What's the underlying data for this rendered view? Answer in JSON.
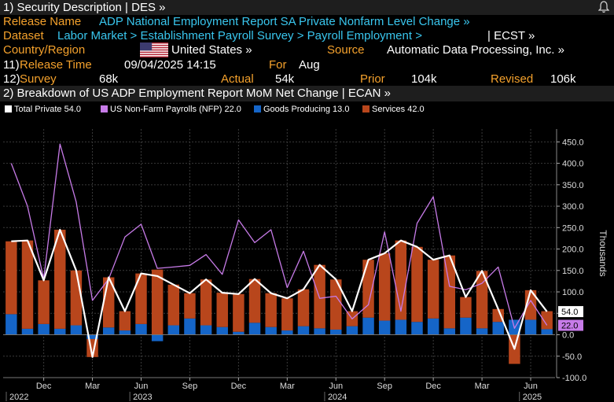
{
  "header": {
    "title": "1) Security Description  | DES  »"
  },
  "info": {
    "release_name_label": "Release Name",
    "release_name_value": "ADP National Employment Report SA Private Nonfarm Level Change »",
    "dataset_label": "Dataset",
    "dataset_value": "Labor Market > Establishment Payroll Survey > Payroll Employment >",
    "dataset_suffix": "| ECST »",
    "country_label": "Country/Region",
    "country_value": "United States »",
    "source_label": "Source",
    "source_value": "Automatic Data Processing, Inc. »",
    "release_time_num": "11)",
    "release_time_label": "Release Time",
    "release_time_value": "09/04/2025 14:15",
    "for_label": "For",
    "for_value": "Aug",
    "survey_num": "12)",
    "survey_label": "Survey",
    "survey_value": "68k",
    "actual_label": "Actual",
    "actual_value": "54k",
    "prior_label": "Prior",
    "prior_value": "104k",
    "revised_label": "Revised",
    "revised_value": "106k"
  },
  "section2": {
    "title": "2) Breakdown of US ADP Employment Report MoM Net Change | ECAN »"
  },
  "legend": [
    {
      "label": "Total Private 54.0",
      "color": "#ffffff"
    },
    {
      "label": "US Non-Farm Payrolls (NFP) 22.0",
      "color": "#c77be8"
    },
    {
      "label": "Goods Producing 13.0",
      "color": "#1565c8"
    },
    {
      "label": "Services 42.0",
      "color": "#b8461c"
    }
  ],
  "chart_data": {
    "type": "bar",
    "ylabel": "Thousands",
    "ylim": [
      -100,
      480
    ],
    "y_ticks": [
      -100,
      -50,
      0,
      50,
      100,
      150,
      200,
      250,
      300,
      350,
      400,
      450
    ],
    "y_tick_labels": [
      "-100.0",
      "-50.0",
      "0.0",
      "50.0",
      "100.0",
      "150.0",
      "200.0",
      "250.0",
      "300.0",
      "350.0",
      "400.0",
      "450.0"
    ],
    "x_tick_labels": [
      "Dec",
      "Mar",
      "Jun",
      "Sep",
      "Dec",
      "Mar",
      "Jun",
      "Sep",
      "Dec",
      "Mar",
      "Jun"
    ],
    "x_tick_index": [
      2,
      5,
      8,
      11,
      14,
      17,
      20,
      23,
      26,
      29,
      32
    ],
    "year_labels": [
      "2022",
      "2023",
      "2024",
      "2025"
    ],
    "year_index": [
      0,
      7.5,
      19.5,
      31.5
    ],
    "series": [
      {
        "name": "Total Private",
        "color": "#ffffff",
        "values": [
          218,
          220,
          127,
          245,
          150,
          -52,
          134,
          55,
          143,
          137,
          117,
          97,
          129,
          98,
          95,
          130,
          97,
          85,
          106,
          163,
          129,
          55,
          175,
          190,
          220,
          205,
          175,
          185,
          88,
          149,
          60,
          -33,
          104,
          54
        ]
      },
      {
        "name": "US Non-Farm Payrolls (NFP)",
        "color": "#c77be8",
        "values": [
          400,
          300,
          130,
          445,
          310,
          80,
          130,
          228,
          258,
          155,
          158,
          162,
          187,
          141,
          268,
          215,
          245,
          110,
          195,
          85,
          90,
          37,
          70,
          240,
          55,
          260,
          322,
          113,
          105,
          120,
          158,
          15,
          80,
          22
        ]
      },
      {
        "name": "Goods Producing",
        "color": "#1565c8",
        "values": [
          48,
          14,
          25,
          14,
          22,
          -10,
          17,
          10,
          25,
          -15,
          22,
          38,
          22,
          18,
          7,
          28,
          18,
          10,
          20,
          15,
          12,
          20,
          40,
          33,
          35,
          30,
          38,
          15,
          40,
          15,
          30,
          35,
          35,
          13
        ]
      },
      {
        "name": "Services",
        "color": "#b8461c",
        "values": [
          170,
          206,
          102,
          231,
          128,
          -42,
          117,
          45,
          118,
          152,
          95,
          59,
          107,
          80,
          88,
          102,
          79,
          75,
          86,
          148,
          117,
          35,
          135,
          157,
          185,
          175,
          137,
          170,
          48,
          134,
          30,
          -68,
          69,
          42
        ]
      }
    ],
    "value_tags": [
      {
        "text": "54.0",
        "value": 54,
        "bg": "#ffffff",
        "fg": "#000000"
      },
      {
        "text": "22.0",
        "value": 22,
        "bg": "#c77be8",
        "fg": "#000000"
      }
    ],
    "grid": true,
    "legend_position": "top-left"
  }
}
